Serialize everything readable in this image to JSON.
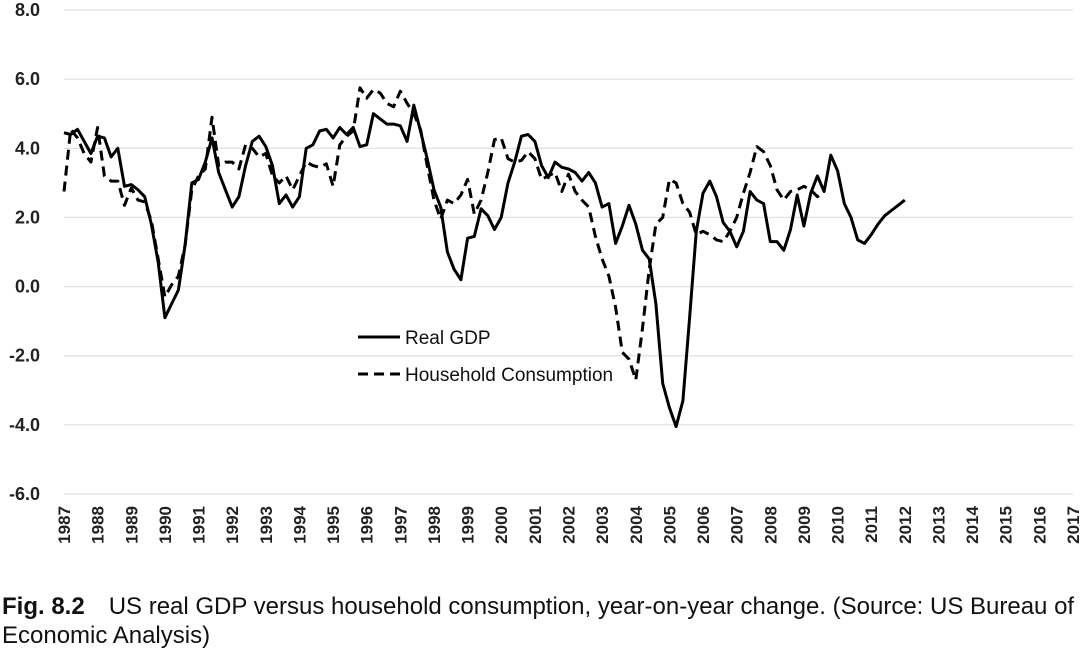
{
  "chart_data": {
    "type": "line",
    "ylim": [
      -6.0,
      8.0
    ],
    "yticks": [
      "8.0",
      "6.0",
      "4.0",
      "2.0",
      "0.0",
      "-2.0",
      "-4.0",
      "-6.0"
    ],
    "ytick_values": [
      8,
      6,
      4,
      2,
      0,
      -2,
      -4,
      -6
    ],
    "xlim": [
      1987,
      2017
    ],
    "xticks": [
      "1987",
      "1988",
      "1989",
      "1990",
      "1991",
      "1992",
      "1993",
      "1994",
      "1995",
      "1996",
      "1997",
      "1998",
      "1999",
      "2000",
      "2001",
      "2002",
      "2003",
      "2004",
      "2005",
      "2006",
      "2007",
      "2008",
      "2009",
      "2010",
      "2011",
      "2012",
      "2013",
      "2014",
      "2015",
      "2016",
      "2017"
    ],
    "grid": "horizontal",
    "legend_position": "center-left",
    "series": [
      {
        "name": "Real GDP",
        "style": "solid",
        "points": [
          [
            1987.0,
            4.45
          ],
          [
            1987.2,
            4.4
          ],
          [
            1987.4,
            4.55
          ],
          [
            1987.6,
            4.2
          ],
          [
            1987.8,
            3.85
          ],
          [
            1988.0,
            4.35
          ],
          [
            1988.2,
            4.3
          ],
          [
            1988.4,
            3.75
          ],
          [
            1988.6,
            4.0
          ],
          [
            1988.8,
            2.9
          ],
          [
            1989.0,
            2.95
          ],
          [
            1989.2,
            2.8
          ],
          [
            1989.4,
            2.6
          ],
          [
            1989.6,
            1.8
          ],
          [
            1989.8,
            0.7
          ],
          [
            1990.0,
            -0.9
          ],
          [
            1990.2,
            -0.5
          ],
          [
            1990.4,
            -0.1
          ],
          [
            1990.6,
            1.2
          ],
          [
            1990.8,
            3.0
          ],
          [
            1991.0,
            3.1
          ],
          [
            1991.2,
            3.6
          ],
          [
            1991.4,
            4.3
          ],
          [
            1991.6,
            3.3
          ],
          [
            1991.8,
            2.8
          ],
          [
            1992.0,
            2.3
          ],
          [
            1992.2,
            2.6
          ],
          [
            1992.4,
            3.5
          ],
          [
            1992.6,
            4.2
          ],
          [
            1992.8,
            4.35
          ],
          [
            1993.0,
            4.05
          ],
          [
            1993.2,
            3.5
          ],
          [
            1993.4,
            2.4
          ],
          [
            1993.6,
            2.65
          ],
          [
            1993.8,
            2.3
          ],
          [
            1994.0,
            2.6
          ],
          [
            1994.2,
            4.0
          ],
          [
            1994.4,
            4.1
          ],
          [
            1994.6,
            4.5
          ],
          [
            1994.8,
            4.55
          ],
          [
            1995.0,
            4.3
          ],
          [
            1995.2,
            4.6
          ],
          [
            1995.4,
            4.4
          ],
          [
            1995.6,
            4.6
          ],
          [
            1995.8,
            4.05
          ],
          [
            1996.0,
            4.1
          ],
          [
            1996.2,
            5.0
          ],
          [
            1996.4,
            4.85
          ],
          [
            1996.6,
            4.7
          ],
          [
            1996.8,
            4.7
          ],
          [
            1997.0,
            4.65
          ],
          [
            1997.2,
            4.2
          ],
          [
            1997.4,
            5.25
          ],
          [
            1997.6,
            4.5
          ],
          [
            1997.8,
            3.7
          ],
          [
            1998.0,
            2.8
          ],
          [
            1998.2,
            2.3
          ],
          [
            1998.4,
            1.0
          ],
          [
            1998.6,
            0.5
          ],
          [
            1998.8,
            0.2
          ],
          [
            1999.0,
            1.4
          ],
          [
            1999.2,
            1.45
          ],
          [
            1999.4,
            2.25
          ],
          [
            1999.6,
            2.05
          ],
          [
            1999.8,
            1.65
          ],
          [
            2000.0,
            2.0
          ],
          [
            2000.2,
            3.0
          ],
          [
            2000.4,
            3.6
          ],
          [
            2000.6,
            4.35
          ],
          [
            2000.8,
            4.4
          ],
          [
            2001.0,
            4.2
          ],
          [
            2001.2,
            3.5
          ],
          [
            2001.4,
            3.15
          ],
          [
            2001.6,
            3.6
          ],
          [
            2001.8,
            3.45
          ],
          [
            2002.0,
            3.4
          ],
          [
            2002.2,
            3.3
          ],
          [
            2002.4,
            3.05
          ],
          [
            2002.6,
            3.3
          ],
          [
            2002.8,
            3.0
          ],
          [
            2003.0,
            2.3
          ],
          [
            2003.2,
            2.4
          ],
          [
            2003.4,
            1.25
          ],
          [
            2003.6,
            1.75
          ],
          [
            2003.8,
            2.35
          ],
          [
            2004.0,
            1.8
          ],
          [
            2004.2,
            1.05
          ],
          [
            2004.4,
            0.8
          ],
          [
            2004.6,
            -0.5
          ],
          [
            2004.8,
            -2.8
          ],
          [
            2005.0,
            -3.5
          ],
          [
            2005.2,
            -4.05
          ],
          [
            2005.4,
            -3.3
          ],
          [
            2005.6,
            -0.9
          ],
          [
            2005.8,
            1.6
          ],
          [
            2006.0,
            2.7
          ],
          [
            2006.2,
            3.05
          ],
          [
            2006.4,
            2.6
          ],
          [
            2006.6,
            1.85
          ],
          [
            2006.8,
            1.6
          ],
          [
            2007.0,
            1.15
          ],
          [
            2007.2,
            1.6
          ],
          [
            2007.4,
            2.75
          ],
          [
            2007.6,
            2.5
          ],
          [
            2007.8,
            2.4
          ],
          [
            2008.0,
            1.3
          ],
          [
            2008.2,
            1.3
          ],
          [
            2008.4,
            1.05
          ],
          [
            2008.6,
            1.65
          ],
          [
            2008.8,
            2.65
          ],
          [
            2009.0,
            1.75
          ],
          [
            2009.2,
            2.7
          ],
          [
            2009.4,
            3.2
          ],
          [
            2009.6,
            2.75
          ],
          [
            2009.8,
            3.8
          ],
          [
            2010.0,
            3.35
          ],
          [
            2010.2,
            2.4
          ],
          [
            2010.4,
            2.0
          ],
          [
            2010.6,
            1.35
          ],
          [
            2010.8,
            1.25
          ],
          [
            2011.0,
            1.5
          ],
          [
            2011.2,
            1.8
          ],
          [
            2011.4,
            2.05
          ],
          [
            2011.6,
            2.2
          ],
          [
            2011.8,
            2.35
          ],
          [
            2012.0,
            2.5
          ]
        ]
      },
      {
        "name": "Household Consumption",
        "style": "dashed",
        "points": [
          [
            1987.0,
            2.75
          ],
          [
            1987.2,
            4.55
          ],
          [
            1987.4,
            4.3
          ],
          [
            1987.6,
            3.85
          ],
          [
            1987.8,
            3.6
          ],
          [
            1988.0,
            4.6
          ],
          [
            1988.2,
            3.2
          ],
          [
            1988.4,
            3.05
          ],
          [
            1988.6,
            3.05
          ],
          [
            1988.8,
            2.35
          ],
          [
            1989.0,
            2.85
          ],
          [
            1989.2,
            2.5
          ],
          [
            1989.4,
            2.45
          ],
          [
            1989.6,
            1.9
          ],
          [
            1989.8,
            0.8
          ],
          [
            1990.0,
            -0.3
          ],
          [
            1990.2,
            0.05
          ],
          [
            1990.4,
            0.3
          ],
          [
            1990.6,
            1.2
          ],
          [
            1990.8,
            2.8
          ],
          [
            1991.0,
            3.2
          ],
          [
            1991.2,
            3.4
          ],
          [
            1991.4,
            4.9
          ],
          [
            1991.6,
            3.5
          ],
          [
            1991.8,
            3.6
          ],
          [
            1992.0,
            3.6
          ],
          [
            1992.2,
            3.4
          ],
          [
            1992.4,
            4.1
          ],
          [
            1992.6,
            4.0
          ],
          [
            1992.8,
            3.75
          ],
          [
            1993.0,
            3.85
          ],
          [
            1993.2,
            3.2
          ],
          [
            1993.4,
            3.0
          ],
          [
            1993.6,
            3.2
          ],
          [
            1993.8,
            2.8
          ],
          [
            1994.0,
            3.2
          ],
          [
            1994.2,
            3.6
          ],
          [
            1994.4,
            3.5
          ],
          [
            1994.6,
            3.45
          ],
          [
            1994.8,
            3.55
          ],
          [
            1995.0,
            2.9
          ],
          [
            1995.2,
            4.1
          ],
          [
            1995.4,
            4.35
          ],
          [
            1995.6,
            4.5
          ],
          [
            1995.8,
            5.75
          ],
          [
            1996.0,
            5.45
          ],
          [
            1996.2,
            5.7
          ],
          [
            1996.4,
            5.6
          ],
          [
            1996.6,
            5.3
          ],
          [
            1996.8,
            5.2
          ],
          [
            1997.0,
            5.65
          ],
          [
            1997.2,
            5.3
          ],
          [
            1997.4,
            5.0
          ],
          [
            1997.6,
            4.55
          ],
          [
            1997.8,
            3.5
          ],
          [
            1998.0,
            2.5
          ],
          [
            1998.2,
            1.95
          ],
          [
            1998.4,
            2.5
          ],
          [
            1998.6,
            2.4
          ],
          [
            1998.8,
            2.65
          ],
          [
            1999.0,
            3.1
          ],
          [
            1999.2,
            2.1
          ],
          [
            1999.4,
            2.5
          ],
          [
            1999.6,
            3.3
          ],
          [
            1999.8,
            4.25
          ],
          [
            2000.0,
            4.3
          ],
          [
            2000.2,
            3.7
          ],
          [
            2000.4,
            3.6
          ],
          [
            2000.6,
            3.65
          ],
          [
            2000.8,
            3.9
          ],
          [
            2001.0,
            3.7
          ],
          [
            2001.2,
            3.1
          ],
          [
            2001.4,
            3.2
          ],
          [
            2001.6,
            3.3
          ],
          [
            2001.8,
            2.75
          ],
          [
            2002.0,
            3.25
          ],
          [
            2002.2,
            2.75
          ],
          [
            2002.4,
            2.5
          ],
          [
            2002.6,
            2.3
          ],
          [
            2002.8,
            1.45
          ],
          [
            2003.0,
            0.8
          ],
          [
            2003.2,
            0.3
          ],
          [
            2003.4,
            -0.6
          ],
          [
            2003.6,
            -1.9
          ],
          [
            2003.8,
            -2.1
          ],
          [
            2004.0,
            -2.7
          ],
          [
            2004.2,
            -1.2
          ],
          [
            2004.4,
            0.5
          ],
          [
            2004.6,
            1.8
          ],
          [
            2004.8,
            2.0
          ],
          [
            2005.0,
            3.1
          ],
          [
            2005.2,
            3.0
          ],
          [
            2005.4,
            2.4
          ],
          [
            2005.6,
            2.15
          ],
          [
            2005.8,
            1.5
          ],
          [
            2006.0,
            1.6
          ],
          [
            2006.2,
            1.5
          ],
          [
            2006.4,
            1.35
          ],
          [
            2006.6,
            1.3
          ],
          [
            2006.8,
            1.6
          ],
          [
            2007.0,
            2.0
          ],
          [
            2007.2,
            2.7
          ],
          [
            2007.4,
            3.3
          ],
          [
            2007.6,
            4.05
          ],
          [
            2007.8,
            3.9
          ],
          [
            2008.0,
            3.5
          ],
          [
            2008.2,
            2.8
          ],
          [
            2008.4,
            2.5
          ],
          [
            2008.6,
            2.75
          ],
          [
            2008.8,
            2.8
          ],
          [
            2009.0,
            2.9
          ],
          [
            2009.2,
            2.8
          ],
          [
            2009.4,
            2.6
          ],
          [
            2009.6,
            2.75
          ]
        ]
      }
    ],
    "legend": [
      "Real GDP",
      "Household Consumption"
    ]
  },
  "caption": {
    "label": "Fig. 8.2",
    "text": "US real GDP versus household consumption, year-on-year change. (Source: US Bureau of Economic Analysis)"
  }
}
